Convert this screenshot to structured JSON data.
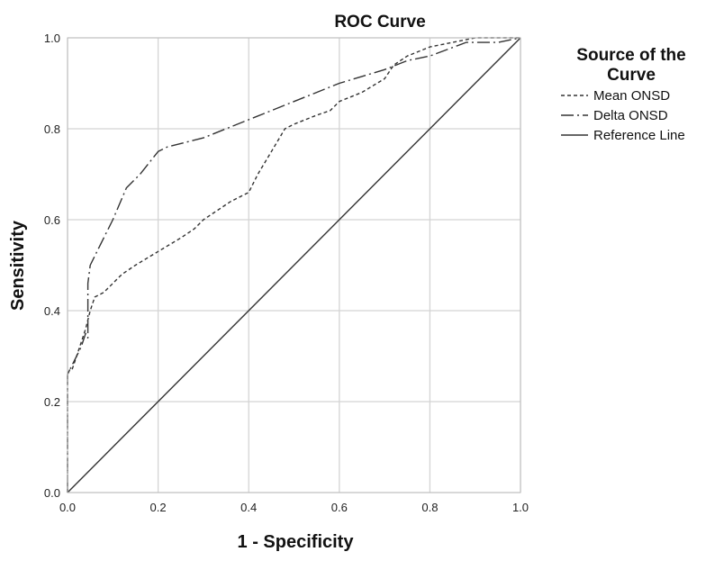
{
  "chart_data": {
    "type": "line",
    "title": "ROC Curve",
    "xlabel": "1 - Specificity",
    "ylabel": "Sensitivity",
    "xlim": [
      0,
      1
    ],
    "ylim": [
      0,
      1
    ],
    "xticks": [
      "0.0",
      "0.2",
      "0.4",
      "0.6",
      "0.8",
      "1.0"
    ],
    "yticks": [
      "0.0",
      "0.2",
      "0.4",
      "0.6",
      "0.8",
      "1.0"
    ],
    "grid": true,
    "legend": {
      "title_line1": "Source of the",
      "title_line2": "Curve",
      "placement": "right"
    },
    "series": [
      {
        "name": "Mean ONSD",
        "style": "dashed",
        "color": "#333333",
        "x": [
          0,
          0,
          0.005,
          0.01,
          0.02,
          0.03,
          0.04,
          0.05,
          0.06,
          0.08,
          0.1,
          0.12,
          0.15,
          0.2,
          0.25,
          0.28,
          0.3,
          0.33,
          0.36,
          0.4,
          0.42,
          0.45,
          0.48,
          0.5,
          0.55,
          0.58,
          0.6,
          0.65,
          0.7,
          0.72,
          0.75,
          0.8,
          0.85,
          0.9,
          1.0
        ],
        "y": [
          0,
          0.26,
          0.27,
          0.27,
          0.3,
          0.33,
          0.36,
          0.4,
          0.43,
          0.44,
          0.46,
          0.48,
          0.5,
          0.53,
          0.56,
          0.58,
          0.6,
          0.62,
          0.64,
          0.66,
          0.7,
          0.75,
          0.8,
          0.81,
          0.83,
          0.84,
          0.86,
          0.88,
          0.91,
          0.94,
          0.96,
          0.98,
          0.99,
          1.0,
          1.0
        ]
      },
      {
        "name": "Delta ONSD",
        "style": "dashdot",
        "color": "#333333",
        "x": [
          0,
          0,
          0.03,
          0.04,
          0.045,
          0.045,
          0.05,
          0.07,
          0.1,
          0.13,
          0.16,
          0.2,
          0.22,
          0.3,
          0.35,
          0.4,
          0.5,
          0.6,
          0.7,
          0.75,
          0.8,
          0.88,
          0.95,
          1.0
        ],
        "y": [
          0,
          0.26,
          0.32,
          0.35,
          0.34,
          0.46,
          0.5,
          0.54,
          0.6,
          0.67,
          0.7,
          0.75,
          0.76,
          0.78,
          0.8,
          0.82,
          0.86,
          0.9,
          0.93,
          0.95,
          0.96,
          0.99,
          0.99,
          1.0
        ]
      },
      {
        "name": "Reference Line",
        "style": "solid",
        "color": "#333333",
        "x": [
          0,
          1
        ],
        "y": [
          0,
          1
        ]
      }
    ]
  }
}
